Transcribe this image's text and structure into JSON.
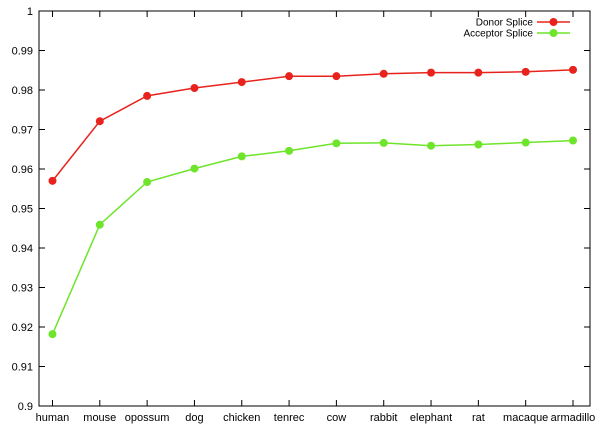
{
  "chart_data": {
    "type": "line",
    "title": "",
    "xlabel": "",
    "ylabel": "",
    "categories": [
      "human",
      "mouse",
      "opossum",
      "dog",
      "chicken",
      "tenrec",
      "cow",
      "rabbit",
      "elephant",
      "rat",
      "macaque",
      "armadillo"
    ],
    "ylim": [
      0.9,
      1.0
    ],
    "yticks": [
      "0.9",
      "0.91",
      "0.92",
      "0.93",
      "0.94",
      "0.95",
      "0.96",
      "0.97",
      "0.98",
      "0.99",
      "1"
    ],
    "grid": false,
    "legend_position": "top-right",
    "series": [
      {
        "name": "Donor Splice",
        "color": "#e8231d",
        "values": [
          0.957,
          0.9721,
          0.9785,
          0.9805,
          0.982,
          0.9835,
          0.9835,
          0.9841,
          0.9844,
          0.9844,
          0.9846,
          0.9851
        ]
      },
      {
        "name": "Acceptor Splice",
        "color": "#6ee42a",
        "values": [
          0.9182,
          0.9459,
          0.9567,
          0.9601,
          0.9632,
          0.9646,
          0.9665,
          0.9666,
          0.9659,
          0.9662,
          0.9667,
          0.9672
        ]
      }
    ]
  }
}
